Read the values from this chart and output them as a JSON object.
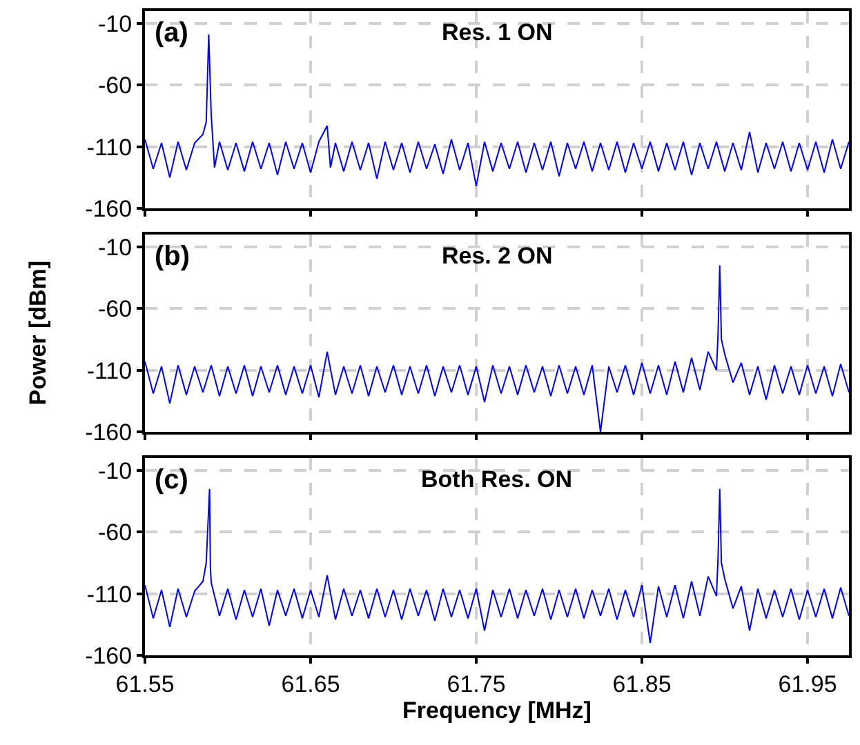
{
  "chart_data": [
    {
      "type": "line",
      "annotations": [
        "(a)",
        "Res. 1 ON"
      ],
      "xlim": [
        61.55,
        61.975
      ],
      "xticks": [
        61.55,
        61.65,
        61.75,
        61.85,
        61.95
      ],
      "ylim": [
        -160,
        0
      ],
      "yticks": [
        -160,
        -110,
        -60,
        -10
      ],
      "grid": true,
      "tick_labels": "y",
      "marker": "none",
      "line_style": "solid",
      "series": [
        {
          "color": "#0000ff",
          "x": [
            61.55,
            61.555,
            61.56,
            61.565,
            61.57,
            61.575,
            61.58,
            61.585,
            61.587,
            61.5885,
            61.59,
            61.592,
            61.595,
            61.6,
            61.605,
            61.61,
            61.615,
            61.62,
            61.625,
            61.63,
            61.635,
            61.64,
            61.645,
            61.65,
            61.655,
            61.66,
            61.662,
            61.665,
            61.67,
            61.675,
            61.68,
            61.685,
            61.69,
            61.695,
            61.7,
            61.705,
            61.71,
            61.715,
            61.72,
            61.725,
            61.73,
            61.735,
            61.74,
            61.745,
            61.75,
            61.755,
            61.76,
            61.765,
            61.77,
            61.775,
            61.78,
            61.785,
            61.79,
            61.795,
            61.8,
            61.805,
            61.81,
            61.815,
            61.82,
            61.825,
            61.83,
            61.835,
            61.84,
            61.845,
            61.85,
            61.855,
            61.86,
            61.865,
            61.87,
            61.875,
            61.88,
            61.885,
            61.89,
            61.895,
            61.9,
            61.905,
            61.91,
            61.915,
            61.92,
            61.925,
            61.93,
            61.935,
            61.94,
            61.945,
            61.95,
            61.955,
            61.96,
            61.965,
            61.97,
            61.975
          ],
          "values": [
            -104,
            -128,
            -107,
            -135,
            -106,
            -129,
            -107,
            -100,
            -90,
            -19,
            -84,
            -127,
            -106,
            -129,
            -107,
            -130,
            -106,
            -128,
            -107,
            -133,
            -106,
            -128,
            -107,
            -131,
            -106,
            -93,
            -127,
            -107,
            -130,
            -106,
            -129,
            -107,
            -136,
            -106,
            -129,
            -107,
            -131,
            -106,
            -128,
            -108,
            -132,
            -104,
            -129,
            -107,
            -142,
            -106,
            -130,
            -107,
            -128,
            -106,
            -131,
            -107,
            -129,
            -106,
            -134,
            -107,
            -128,
            -106,
            -130,
            -107,
            -129,
            -106,
            -131,
            -107,
            -128,
            -106,
            -130,
            -107,
            -129,
            -106,
            -133,
            -107,
            -128,
            -106,
            -130,
            -107,
            -129,
            -98,
            -131,
            -107,
            -128,
            -106,
            -130,
            -107,
            -129,
            -106,
            -131,
            -104,
            -128,
            -106
          ]
        }
      ]
    },
    {
      "type": "line",
      "annotations": [
        "(b)",
        "Res. 2 ON"
      ],
      "ylabel": "Power [dBm]",
      "xlim": [
        61.55,
        61.975
      ],
      "xticks": [
        61.55,
        61.65,
        61.75,
        61.85,
        61.95
      ],
      "ylim": [
        -160,
        0
      ],
      "yticks": [
        -160,
        -110,
        -60,
        -10
      ],
      "grid": true,
      "tick_labels": "y",
      "marker": "none",
      "line_style": "solid",
      "series": [
        {
          "color": "#0000ff",
          "x": [
            61.55,
            61.555,
            61.56,
            61.565,
            61.57,
            61.575,
            61.58,
            61.585,
            61.59,
            61.595,
            61.6,
            61.605,
            61.61,
            61.615,
            61.62,
            61.625,
            61.63,
            61.635,
            61.64,
            61.645,
            61.65,
            61.655,
            61.66,
            61.665,
            61.67,
            61.675,
            61.68,
            61.685,
            61.69,
            61.695,
            61.7,
            61.705,
            61.71,
            61.715,
            61.72,
            61.725,
            61.73,
            61.735,
            61.74,
            61.745,
            61.75,
            61.755,
            61.76,
            61.765,
            61.77,
            61.775,
            61.78,
            61.785,
            61.79,
            61.795,
            61.8,
            61.805,
            61.81,
            61.815,
            61.82,
            61.825,
            61.83,
            61.835,
            61.84,
            61.845,
            61.85,
            61.855,
            61.86,
            61.865,
            61.87,
            61.875,
            61.88,
            61.885,
            61.89,
            61.895,
            61.896,
            61.897,
            61.898,
            61.9,
            61.905,
            61.91,
            61.915,
            61.92,
            61.925,
            61.93,
            61.935,
            61.94,
            61.945,
            61.95,
            61.955,
            61.96,
            61.965,
            61.97,
            61.975
          ],
          "values": [
            -103,
            -129,
            -107,
            -137,
            -106,
            -130,
            -107,
            -128,
            -106,
            -131,
            -107,
            -129,
            -106,
            -131,
            -107,
            -128,
            -106,
            -130,
            -107,
            -129,
            -106,
            -132,
            -95,
            -130,
            -107,
            -129,
            -106,
            -131,
            -107,
            -128,
            -106,
            -130,
            -107,
            -129,
            -106,
            -131,
            -107,
            -128,
            -106,
            -130,
            -107,
            -136,
            -106,
            -129,
            -107,
            -130,
            -106,
            -128,
            -107,
            -131,
            -106,
            -129,
            -107,
            -130,
            -106,
            -160,
            -107,
            -128,
            -106,
            -130,
            -104,
            -129,
            -106,
            -130,
            -103,
            -128,
            -100,
            -126,
            -95,
            -110,
            -80,
            -25,
            -85,
            -97,
            -120,
            -104,
            -130,
            -107,
            -134,
            -106,
            -129,
            -107,
            -130,
            -106,
            -129,
            -107,
            -131,
            -105,
            -128
          ]
        }
      ]
    },
    {
      "type": "line",
      "annotations": [
        "(c)",
        "Both Res. ON"
      ],
      "xlabel": "Frequency [MHz]",
      "xlim": [
        61.55,
        61.975
      ],
      "xticks": [
        61.55,
        61.65,
        61.75,
        61.85,
        61.95
      ],
      "ylim": [
        -160,
        0
      ],
      "yticks": [
        -160,
        -110,
        -60,
        -10
      ],
      "grid": true,
      "marker": "none",
      "line_style": "solid",
      "series": [
        {
          "color": "#0000ff",
          "x": [
            61.55,
            61.555,
            61.56,
            61.565,
            61.57,
            61.575,
            61.58,
            61.585,
            61.587,
            61.589,
            61.5895,
            61.59,
            61.595,
            61.6,
            61.605,
            61.61,
            61.615,
            61.62,
            61.625,
            61.63,
            61.635,
            61.64,
            61.645,
            61.65,
            61.655,
            61.66,
            61.665,
            61.67,
            61.675,
            61.68,
            61.685,
            61.69,
            61.695,
            61.7,
            61.705,
            61.71,
            61.715,
            61.72,
            61.725,
            61.73,
            61.735,
            61.74,
            61.745,
            61.75,
            61.755,
            61.76,
            61.765,
            61.77,
            61.775,
            61.78,
            61.785,
            61.79,
            61.795,
            61.8,
            61.805,
            61.81,
            61.815,
            61.82,
            61.825,
            61.83,
            61.835,
            61.84,
            61.845,
            61.85,
            61.855,
            61.86,
            61.865,
            61.87,
            61.875,
            61.88,
            61.885,
            61.89,
            61.895,
            61.896,
            61.897,
            61.898,
            61.9,
            61.905,
            61.91,
            61.915,
            61.92,
            61.925,
            61.93,
            61.935,
            61.94,
            61.945,
            61.95,
            61.955,
            61.96,
            61.965,
            61.97,
            61.975
          ],
          "values": [
            -103,
            -130,
            -107,
            -137,
            -106,
            -129,
            -108,
            -100,
            -85,
            -25,
            -88,
            -101,
            -128,
            -106,
            -131,
            -107,
            -129,
            -106,
            -136,
            -107,
            -128,
            -106,
            -130,
            -107,
            -129,
            -95,
            -131,
            -106,
            -128,
            -107,
            -130,
            -106,
            -129,
            -107,
            -131,
            -106,
            -128,
            -107,
            -132,
            -106,
            -129,
            -107,
            -130,
            -106,
            -140,
            -107,
            -129,
            -106,
            -130,
            -107,
            -128,
            -106,
            -131,
            -107,
            -129,
            -106,
            -130,
            -107,
            -128,
            -106,
            -131,
            -107,
            -129,
            -103,
            -150,
            -104,
            -129,
            -103,
            -130,
            -100,
            -128,
            -96,
            -112,
            -80,
            -25,
            -85,
            -98,
            -122,
            -104,
            -140,
            -106,
            -130,
            -107,
            -129,
            -106,
            -131,
            -107,
            -129,
            -106,
            -130,
            -105,
            -128
          ]
        }
      ]
    }
  ]
}
